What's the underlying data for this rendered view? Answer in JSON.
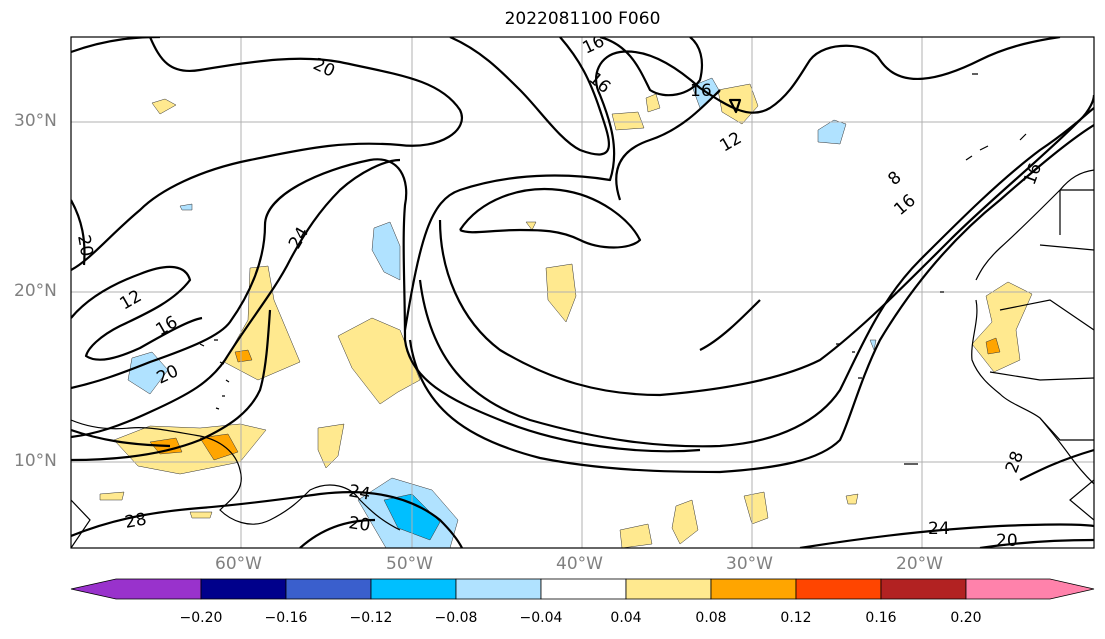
{
  "title": "2022081100 F060",
  "map": {
    "lat_labels": [
      "30°N",
      "20°N",
      "10°N"
    ],
    "lon_labels": [
      "60°W",
      "50°W",
      "40°W",
      "30°W",
      "20°W"
    ],
    "contour_labels": [
      "16",
      "16",
      "16",
      "20",
      "12",
      "16",
      "20",
      "24",
      "12",
      "8",
      "16",
      "16",
      "20",
      "24",
      "28",
      "20",
      "28",
      "24",
      "20"
    ],
    "colors": {
      "contour": "#000000",
      "grid": "#b0b0b0",
      "coast": "#000000"
    }
  },
  "colorbar": {
    "tick_labels": [
      "−0.20",
      "−0.16",
      "−0.12",
      "−0.08",
      "−0.04",
      "0.04",
      "0.08",
      "0.12",
      "0.16",
      "0.20"
    ],
    "colors": [
      "#9932cc",
      "#00008b",
      "#3a5fcd",
      "#00bfff",
      "#b0e2ff",
      "#ffffff",
      "#ffe98f",
      "#ffa500",
      "#ff4500",
      "#b22222",
      "#ff82ab"
    ]
  }
}
